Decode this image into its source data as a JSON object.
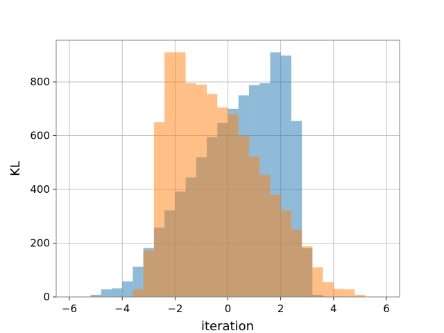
{
  "chart_data": {
    "type": "bar",
    "subtype": "histogram-overlay",
    "title": "",
    "xlabel": "iteration",
    "ylabel": "KL",
    "xlim": [
      -6.5,
      6.5
    ],
    "ylim": [
      0,
      955
    ],
    "grid": true,
    "xticks": [
      -6,
      -4,
      -2,
      0,
      2,
      4,
      6
    ],
    "yticks": [
      0,
      200,
      400,
      600,
      800
    ],
    "series": [
      {
        "color": "#1f77b4",
        "alpha": 0.5,
        "bin_edges": [
          -5.2,
          -4.8,
          -4.4,
          -4.0,
          -3.6,
          -3.2,
          -2.8,
          -2.4,
          -2.0,
          -1.6,
          -1.2,
          -0.8,
          -0.4,
          0.0,
          0.4,
          0.8,
          1.2,
          1.6,
          2.0,
          2.4,
          2.8,
          3.2,
          3.6
        ],
        "counts": [
          8,
          28,
          32,
          58,
          112,
          182,
          258,
          322,
          392,
          445,
          520,
          594,
          648,
          700,
          750,
          788,
          795,
          910,
          898,
          655,
          182,
          8
        ]
      },
      {
        "color": "#ff7f0e",
        "alpha": 0.5,
        "bin_edges": [
          -3.6,
          -3.2,
          -2.8,
          -2.4,
          -2.0,
          -1.6,
          -1.2,
          -0.8,
          -0.4,
          0.0,
          0.4,
          0.8,
          1.2,
          1.6,
          2.0,
          2.4,
          2.8,
          3.2,
          3.6,
          4.0,
          4.4,
          4.8,
          5.2
        ],
        "counts": [
          28,
          172,
          650,
          910,
          910,
          795,
          790,
          755,
          705,
          680,
          600,
          522,
          455,
          380,
          322,
          250,
          188,
          110,
          55,
          30,
          28,
          8
        ]
      }
    ]
  }
}
